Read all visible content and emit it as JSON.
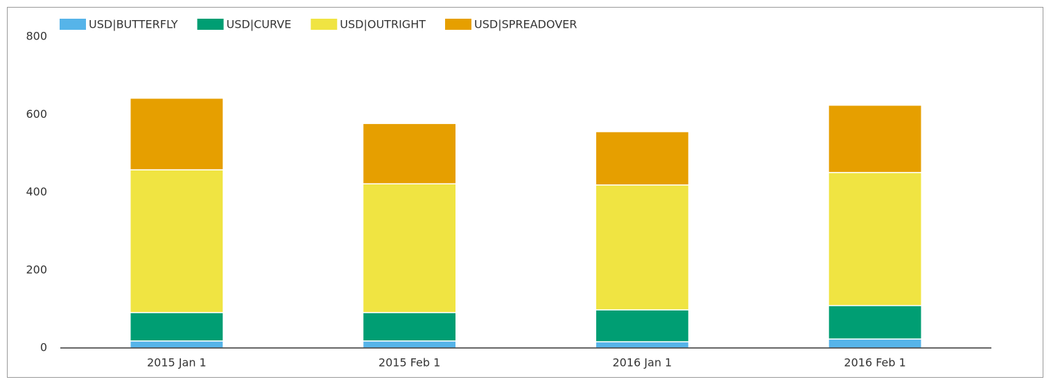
{
  "chart_data": {
    "type": "stacked_bar",
    "categories": [
      "2015 Jan 1",
      "2015 Feb 1",
      "2016 Jan 1",
      "2016 Feb 1"
    ],
    "series": [
      {
        "name": "USD|BUTTERFLY",
        "color": "#56b4e9",
        "values": [
          18,
          18,
          16,
          23
        ]
      },
      {
        "name": "USD|CURVE",
        "color": "#009e73",
        "values": [
          73,
          73,
          82,
          86
        ]
      },
      {
        "name": "USD|OUTRIGHT",
        "color": "#f0e442",
        "values": [
          367,
          331,
          321,
          342
        ]
      },
      {
        "name": "USD|SPREADOVER",
        "color": "#e69f00",
        "values": [
          184,
          155,
          137,
          173
        ]
      }
    ],
    "ylim": [
      0,
      800
    ],
    "yticks": [
      0,
      200,
      400,
      600,
      800
    ],
    "grid": false,
    "legend": "top"
  }
}
